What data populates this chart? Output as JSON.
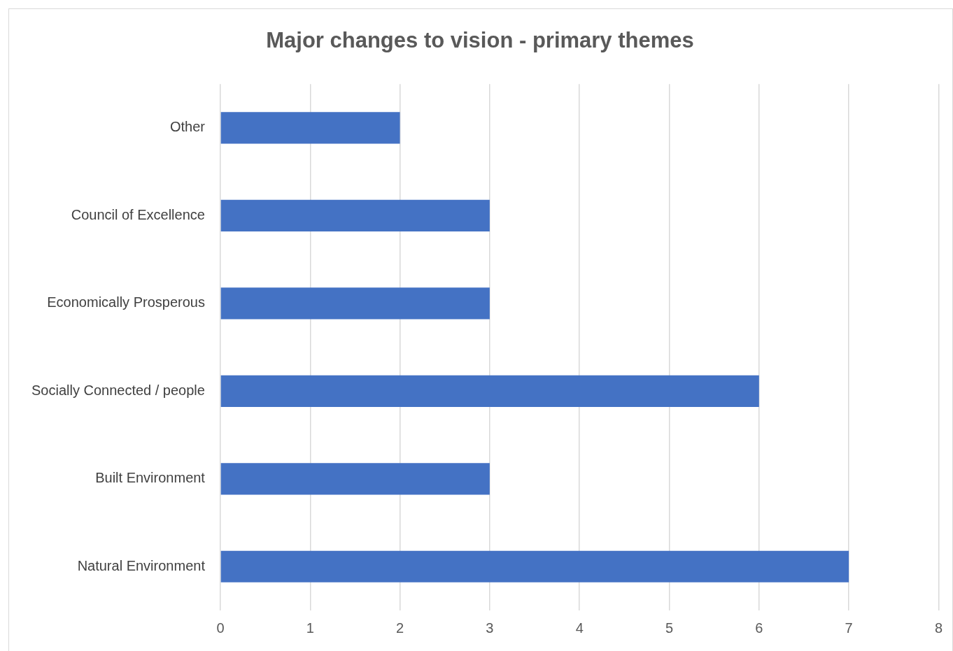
{
  "chart_data": {
    "type": "bar",
    "title": "Major changes to vision - primary themes",
    "orientation": "horizontal",
    "categories": [
      "Other",
      "Council of Excellence",
      "Economically Prosperous",
      "Socially Connected / people",
      "Built Environment",
      "Natural Environment"
    ],
    "values": [
      2,
      3,
      3,
      6,
      3,
      7
    ],
    "color": "#4472c4",
    "xlim": [
      0,
      8
    ],
    "xticks": [
      0,
      1,
      2,
      3,
      4,
      5,
      6,
      7,
      8
    ],
    "grid": "x",
    "legend": false
  }
}
